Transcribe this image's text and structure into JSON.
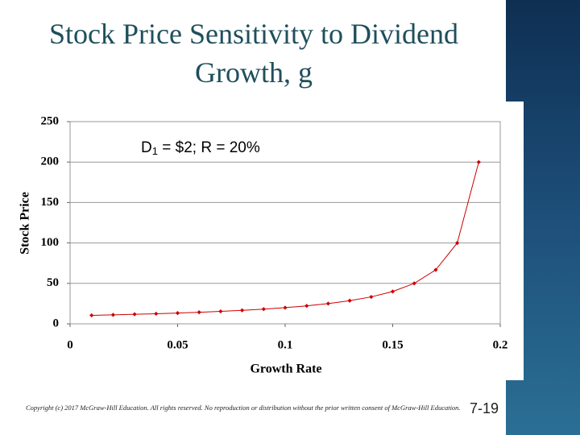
{
  "chart_data": {
    "type": "line",
    "title": "Stock Price Sensitivity to Dividend Growth, g",
    "annotation": [
      "D",
      "1",
      " = $2; R = 20%"
    ],
    "x_label": "Growth Rate",
    "y_label": "Stock Price",
    "x": [
      0.01,
      0.02,
      0.03,
      0.04,
      0.05,
      0.06,
      0.07,
      0.08,
      0.09,
      0.1,
      0.11,
      0.12,
      0.13,
      0.14,
      0.15,
      0.16,
      0.17,
      0.18,
      0.19
    ],
    "series": [
      {
        "name": "Stock Price",
        "color": "#cc0000",
        "values": [
          10.5,
          11.1,
          11.8,
          12.5,
          13.3,
          14.3,
          15.4,
          16.7,
          18.2,
          20,
          22.2,
          25,
          28.6,
          33.3,
          40,
          50,
          66.7,
          100,
          200
        ]
      }
    ],
    "xlim": [
      0,
      0.2
    ],
    "xticks": [
      0,
      0.05,
      0.1,
      0.15,
      0.2
    ],
    "ylim": [
      0,
      250
    ],
    "yticks": [
      0,
      50,
      100,
      150,
      200,
      250
    ],
    "grid": true
  },
  "footer": "Copyright (c) 2017 McGraw-Hill Education. All rights reserved. No reproduction or distribution without the prior written consent of McGraw-Hill Education.",
  "slide_number": "7-19"
}
